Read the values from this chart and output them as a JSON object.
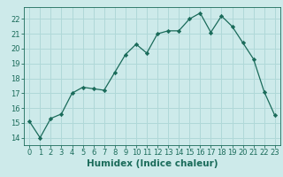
{
  "x": [
    0,
    1,
    2,
    3,
    4,
    5,
    6,
    7,
    8,
    9,
    10,
    11,
    12,
    13,
    14,
    15,
    16,
    17,
    18,
    19,
    20,
    21,
    22,
    23
  ],
  "y": [
    15.1,
    14.0,
    15.3,
    15.6,
    17.0,
    17.4,
    17.3,
    17.2,
    18.4,
    19.6,
    20.3,
    19.7,
    21.0,
    21.2,
    21.2,
    22.0,
    22.4,
    21.1,
    22.2,
    21.5,
    20.4,
    19.3,
    17.1,
    15.5
  ],
  "line_color": "#1a6b5a",
  "marker": "D",
  "marker_size": 2.2,
  "bg_color": "#cdeaea",
  "grid_color": "#b0d8d8",
  "xlabel": "Humidex (Indice chaleur)",
  "xlabel_fontsize": 7.5,
  "tick_fontsize": 6.0,
  "xlim": [
    -0.5,
    23.5
  ],
  "ylim": [
    13.5,
    22.8
  ],
  "yticks": [
    14,
    15,
    16,
    17,
    18,
    19,
    20,
    21,
    22
  ],
  "xticks": [
    0,
    1,
    2,
    3,
    4,
    5,
    6,
    7,
    8,
    9,
    10,
    11,
    12,
    13,
    14,
    15,
    16,
    17,
    18,
    19,
    20,
    21,
    22,
    23
  ]
}
